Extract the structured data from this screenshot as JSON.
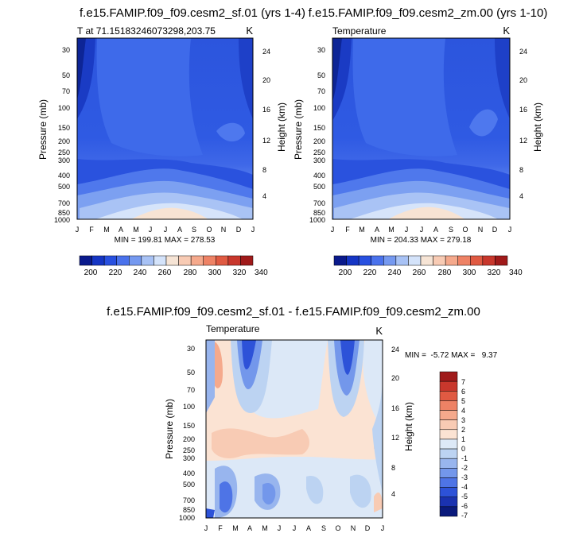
{
  "chart_data": [
    {
      "type": "contour",
      "title": "f.e15.FAMIP.f09_f09.cesm2_sf.01 (yrs 1-4)",
      "subtitle_left": "T at 71.15183246073298,203.75",
      "subtitle_right": "K",
      "ylabel": "Pressure (mb)",
      "ylabel_right": "Height (km)",
      "x_ticks": [
        "J",
        "F",
        "M",
        "A",
        "M",
        "J",
        "J",
        "A",
        "S",
        "O",
        "N",
        "D",
        "J"
      ],
      "y_ticks": [
        30,
        50,
        70,
        100,
        150,
        200,
        250,
        300,
        400,
        500,
        700,
        850,
        1000
      ],
      "y_right_ticks": [
        24,
        20,
        16,
        12,
        8,
        4
      ],
      "ylim": [
        1000,
        20
      ],
      "stats": "MIN = 199.81 MAX = 278.53",
      "min": 199.81,
      "max": 278.53
    },
    {
      "type": "contour",
      "title": "f.e15.FAMIP.f09_f09.cesm2_zm.00 (yrs 1-10)",
      "subtitle_left": "Temperature",
      "subtitle_right": "K",
      "ylabel": "Pressure (mb)",
      "ylabel_right": "Height (km)",
      "x_ticks": [
        "J",
        "F",
        "M",
        "A",
        "M",
        "J",
        "J",
        "A",
        "S",
        "O",
        "N",
        "D",
        "J"
      ],
      "y_ticks": [
        30,
        50,
        70,
        100,
        150,
        200,
        250,
        300,
        400,
        500,
        700,
        850,
        1000
      ],
      "y_right_ticks": [
        24,
        20,
        16,
        12,
        8,
        4
      ],
      "ylim": [
        1000,
        20
      ],
      "stats": "MIN = 204.33 MAX = 279.18",
      "min": 204.33,
      "max": 279.18
    },
    {
      "type": "contour",
      "title": "f.e15.FAMIP.f09_f09.cesm2_sf.01 - f.e15.FAMIP.f09_f09.cesm2_zm.00",
      "subtitle_left": "Temperature",
      "subtitle_right": "K",
      "ylabel": "Pressure (mb)",
      "ylabel_right": "Height (km)",
      "x_ticks": [
        "J",
        "F",
        "M",
        "A",
        "M",
        "J",
        "J",
        "A",
        "S",
        "O",
        "N",
        "D",
        "J"
      ],
      "y_ticks": [
        30,
        50,
        70,
        100,
        150,
        200,
        250,
        300,
        400,
        500,
        700,
        850,
        1000
      ],
      "y_right_ticks": [
        24,
        20,
        16,
        12,
        8,
        4
      ],
      "ylim": [
        1000,
        20
      ],
      "stats": "MIN =  -5.72 MAX =   9.37",
      "min": -5.72,
      "max": 9.37
    }
  ],
  "colorbar_abs": {
    "labels": [
      "200",
      "220",
      "240",
      "260",
      "280",
      "300",
      "320",
      "340"
    ],
    "colors": [
      "#0a1a8c",
      "#1535c4",
      "#2850e0",
      "#4a72ec",
      "#7599f0",
      "#a8c2f5",
      "#d4e3fa",
      "#f6e4d5",
      "#f8cbb4",
      "#f5a98c",
      "#ee8265",
      "#e05a42",
      "#c8372c",
      "#a01a1a"
    ]
  },
  "colorbar_diff": {
    "labels": [
      "7",
      "6",
      "5",
      "4",
      "3",
      "2",
      "1",
      "0",
      "-1",
      "-2",
      "-3",
      "-4",
      "-5",
      "-6",
      "-7"
    ],
    "colors": [
      "#a01a1a",
      "#c8372c",
      "#e05a42",
      "#ee8265",
      "#f5a98c",
      "#f8cbb4",
      "#fbe3d3",
      "#dde9f7",
      "#bcd3f2",
      "#98b5ee",
      "#7397eb",
      "#4e74e6",
      "#2d52d8",
      "#1a32b0",
      "#0a1a7c"
    ]
  }
}
